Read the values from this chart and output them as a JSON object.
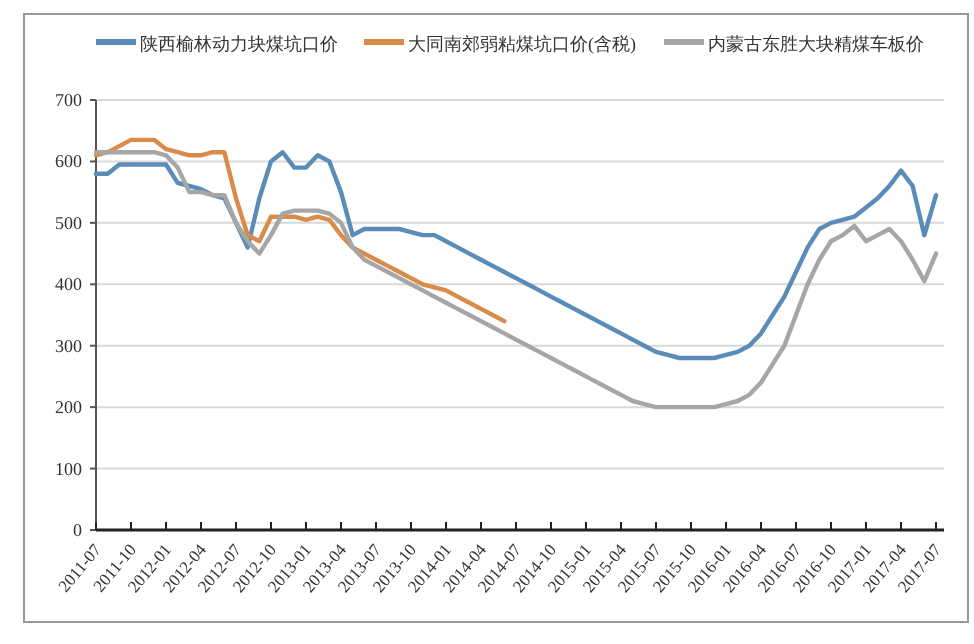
{
  "chart_data": {
    "type": "line",
    "categories": [
      "2011-07",
      null,
      null,
      "2011-10",
      null,
      null,
      "2012-01",
      null,
      null,
      "2012-04",
      null,
      null,
      "2012-07",
      null,
      null,
      "2012-10",
      null,
      null,
      "2013-01",
      null,
      null,
      "2013-04",
      null,
      null,
      "2013-07",
      null,
      null,
      "2013-10",
      null,
      null,
      "2014-01",
      null,
      null,
      "2014-04",
      null,
      null,
      "2014-07",
      null,
      null,
      "2014-10",
      null,
      null,
      "2015-01",
      null,
      null,
      "2015-04",
      null,
      null,
      "2015-07",
      null,
      null,
      "2015-10",
      null,
      null,
      "2016-01",
      null,
      null,
      "2016-04",
      null,
      null,
      "2016-07",
      null,
      null,
      "2016-10",
      null,
      null,
      "2017-01",
      null,
      null,
      "2017-04",
      null,
      null,
      "2017-07"
    ],
    "series": [
      {
        "name": "陕西榆林动力块煤坑口价",
        "color": "#5b8cb8",
        "values": [
          580,
          580,
          595,
          595,
          595,
          595,
          595,
          565,
          560,
          555,
          545,
          540,
          500,
          460,
          540,
          600,
          615,
          590,
          590,
          610,
          600,
          550,
          480,
          490,
          490,
          490,
          490,
          485,
          480,
          480,
          470,
          460,
          450,
          440,
          430,
          420,
          410,
          400,
          390,
          380,
          370,
          360,
          350,
          340,
          330,
          320,
          310,
          300,
          290,
          285,
          280,
          280,
          280,
          280,
          285,
          290,
          300,
          320,
          350,
          380,
          420,
          460,
          490,
          500,
          505,
          510,
          525,
          540,
          560,
          585,
          560,
          480,
          545
        ]
      },
      {
        "name": "大同南郊弱粘煤坑口价(含税)",
        "color": "#d98c4a",
        "values": [
          610,
          615,
          625,
          635,
          635,
          635,
          620,
          615,
          610,
          610,
          615,
          615,
          540,
          480,
          470,
          510,
          510,
          510,
          505,
          510,
          505,
          480,
          460,
          450,
          440,
          430,
          420,
          410,
          400,
          395,
          390,
          380,
          370,
          360,
          350,
          340,
          null,
          null,
          null,
          null,
          null,
          null,
          null,
          null,
          null,
          null,
          null,
          null,
          null,
          null,
          null,
          null,
          null,
          null,
          null,
          null,
          null,
          null,
          null,
          null,
          null,
          null,
          null,
          null,
          null,
          null,
          null,
          null,
          null,
          null,
          null,
          null,
          null
        ]
      },
      {
        "name": "内蒙古东胜大块精煤车板价",
        "color": "#a6a6a6",
        "values": [
          615,
          615,
          615,
          615,
          615,
          615,
          610,
          590,
          550,
          550,
          545,
          545,
          500,
          470,
          450,
          480,
          515,
          520,
          520,
          520,
          515,
          500,
          460,
          440,
          430,
          420,
          410,
          400,
          390,
          380,
          370,
          360,
          350,
          340,
          330,
          320,
          310,
          300,
          290,
          280,
          270,
          260,
          250,
          240,
          230,
          220,
          210,
          205,
          200,
          200,
          200,
          200,
          200,
          200,
          205,
          210,
          220,
          240,
          270,
          300,
          350,
          400,
          440,
          470,
          480,
          495,
          470,
          480,
          490,
          470,
          440,
          405,
          450
        ]
      }
    ],
    "ylim": [
      0,
      700
    ],
    "yticks": [
      0,
      100,
      200,
      300,
      400,
      500,
      600,
      700
    ],
    "grid": "y",
    "legend": "top",
    "marker": "none",
    "line_style": "solid"
  }
}
